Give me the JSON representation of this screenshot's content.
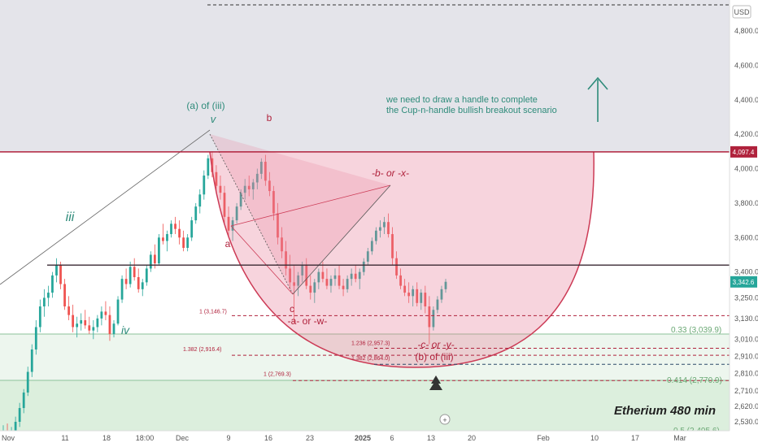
{
  "chart_data": {
    "type": "candlestick",
    "title": "Etherium 480 min",
    "currency": "USD",
    "y_axis_ticks": [
      "2,530.0",
      "2,620.0",
      "2,710.0",
      "2,810.0",
      "2,910.0",
      "3,010.0",
      "3,130.0",
      "3,250.0",
      "3,400.0",
      "3,600.0",
      "3,800.0",
      "4,000.0",
      "4,200.0",
      "4,400.0",
      "4,600.0",
      "4,800.0"
    ],
    "x_axis_ticks": [
      "Nov",
      "11",
      "18",
      "18:00",
      "Dec",
      "9",
      "16",
      "23",
      "2025",
      "6",
      "13",
      "20",
      "Feb",
      "10",
      "17",
      "Mar"
    ],
    "price_labels": {
      "resistance": "4,097.4",
      "last_price": "3,342.6"
    },
    "horizontal_levels": [
      {
        "name": "resistance",
        "value": 4097.4,
        "color": "#b0223c"
      },
      {
        "name": "neckline",
        "value": 3440,
        "color": "#3a2a33"
      },
      {
        "name": "top-dashed",
        "value": 5000,
        "color": "#333333"
      }
    ],
    "fib_levels": [
      {
        "label": "1 (3,146.7)",
        "value": 3146.7
      },
      {
        "label": "1.382 (2,916.4)",
        "value": 2916.4
      },
      {
        "label": "1 (2,769.3)",
        "value": 2769.3
      },
      {
        "label": "1.236 (2,957.3)",
        "value": 2957.3
      },
      {
        "label": "1.382 (2,864.0)",
        "value": 2864.0
      }
    ],
    "green_fibs": [
      {
        "label": "0.33 (3,039.9)",
        "value": 3039.9
      },
      {
        "label": "0.414 (2,770.9)",
        "value": 2770.9
      },
      {
        "label": "0.5 (2,495.6)",
        "value": 2495.6
      }
    ],
    "wave_labels": {
      "iii": "iii",
      "iv": "iv",
      "v_top": "(a) of (iii)",
      "v": "v",
      "a": "a",
      "b": "b",
      "c": "c",
      "c_alt": "-a- or -w-",
      "b_alt": "-b- or -x-",
      "c_bottom": "-c- or -y-",
      "b_of_iii": "(b) of (iii)"
    },
    "annotation": "we need to draw a handle to complete\nthe Cup-n-handle bullish breakout scenario",
    "candles": [
      [
        2450,
        2510,
        2380,
        2470
      ],
      [
        2470,
        2520,
        2400,
        2440
      ],
      [
        2440,
        2500,
        2410,
        2480
      ],
      [
        2480,
        2560,
        2450,
        2530
      ],
      [
        2530,
        2640,
        2500,
        2610
      ],
      [
        2610,
        2720,
        2580,
        2700
      ],
      [
        2700,
        2850,
        2680,
        2820
      ],
      [
        2820,
        2980,
        2790,
        2950
      ],
      [
        2950,
        3120,
        2920,
        3080
      ],
      [
        3080,
        3240,
        3050,
        3200
      ],
      [
        3200,
        3300,
        3140,
        3250
      ],
      [
        3250,
        3320,
        3200,
        3280
      ],
      [
        3280,
        3400,
        3250,
        3380
      ],
      [
        3380,
        3480,
        3340,
        3440
      ],
      [
        3440,
        3460,
        3300,
        3330
      ],
      [
        3330,
        3360,
        3180,
        3200
      ],
      [
        3200,
        3260,
        3120,
        3150
      ],
      [
        3150,
        3210,
        3050,
        3080
      ],
      [
        3080,
        3140,
        3020,
        3100
      ],
      [
        3100,
        3160,
        3060,
        3120
      ],
      [
        3120,
        3180,
        3070,
        3090
      ],
      [
        3090,
        3140,
        3040,
        3060
      ],
      [
        3060,
        3120,
        3010,
        3080
      ],
      [
        3080,
        3150,
        3050,
        3130
      ],
      [
        3130,
        3200,
        3090,
        3170
      ],
      [
        3170,
        3230,
        3120,
        3150
      ],
      [
        3150,
        3200,
        3000,
        3040
      ],
      [
        3040,
        3120,
        3020,
        3100
      ],
      [
        3100,
        3260,
        3090,
        3240
      ],
      [
        3240,
        3380,
        3220,
        3360
      ],
      [
        3360,
        3420,
        3300,
        3330
      ],
      [
        3330,
        3460,
        3310,
        3430
      ],
      [
        3430,
        3480,
        3350,
        3370
      ],
      [
        3370,
        3420,
        3280,
        3300
      ],
      [
        3300,
        3360,
        3260,
        3340
      ],
      [
        3340,
        3440,
        3320,
        3420
      ],
      [
        3420,
        3520,
        3400,
        3500
      ],
      [
        3500,
        3560,
        3420,
        3450
      ],
      [
        3450,
        3620,
        3440,
        3600
      ],
      [
        3600,
        3680,
        3560,
        3580
      ],
      [
        3580,
        3640,
        3520,
        3620
      ],
      [
        3620,
        3700,
        3600,
        3680
      ],
      [
        3680,
        3720,
        3620,
        3650
      ],
      [
        3650,
        3700,
        3560,
        3600
      ],
      [
        3600,
        3640,
        3520,
        3540
      ],
      [
        3540,
        3620,
        3520,
        3600
      ],
      [
        3600,
        3720,
        3580,
        3700
      ],
      [
        3700,
        3800,
        3680,
        3780
      ],
      [
        3780,
        3880,
        3740,
        3850
      ],
      [
        3850,
        3990,
        3820,
        3960
      ],
      [
        3960,
        4080,
        3940,
        4060
      ],
      [
        4060,
        4100,
        3950,
        3980
      ],
      [
        3980,
        4020,
        3860,
        3900
      ],
      [
        3900,
        3960,
        3820,
        3860
      ],
      [
        3860,
        3900,
        3680,
        3720
      ],
      [
        3720,
        3780,
        3600,
        3640
      ],
      [
        3640,
        3720,
        3580,
        3700
      ],
      [
        3700,
        3800,
        3680,
        3780
      ],
      [
        3780,
        3880,
        3760,
        3860
      ],
      [
        3860,
        3940,
        3820,
        3900
      ],
      [
        3900,
        3960,
        3840,
        3880
      ],
      [
        3880,
        3940,
        3820,
        3920
      ],
      [
        3920,
        4000,
        3880,
        3970
      ],
      [
        3970,
        4060,
        3940,
        4040
      ],
      [
        4040,
        4080,
        3900,
        3930
      ],
      [
        3930,
        3980,
        3840,
        3870
      ],
      [
        3870,
        3900,
        3700,
        3740
      ],
      [
        3740,
        3800,
        3560,
        3600
      ],
      [
        3600,
        3660,
        3480,
        3520
      ],
      [
        3520,
        3580,
        3380,
        3420
      ],
      [
        3420,
        3500,
        3300,
        3340
      ],
      [
        3340,
        3440,
        3100,
        3320
      ],
      [
        3320,
        3400,
        3260,
        3380
      ],
      [
        3380,
        3460,
        3340,
        3440
      ],
      [
        3440,
        3480,
        3300,
        3320
      ],
      [
        3320,
        3380,
        3240,
        3280
      ],
      [
        3280,
        3360,
        3220,
        3340
      ],
      [
        3340,
        3420,
        3300,
        3400
      ],
      [
        3400,
        3460,
        3340,
        3360
      ],
      [
        3360,
        3420,
        3300,
        3320
      ],
      [
        3320,
        3380,
        3280,
        3360
      ],
      [
        3360,
        3420,
        3320,
        3380
      ],
      [
        3380,
        3440,
        3300,
        3320
      ],
      [
        3320,
        3360,
        3260,
        3300
      ],
      [
        3300,
        3380,
        3280,
        3360
      ],
      [
        3360,
        3420,
        3320,
        3390
      ],
      [
        3390,
        3440,
        3340,
        3360
      ],
      [
        3360,
        3420,
        3300,
        3400
      ],
      [
        3400,
        3480,
        3380,
        3460
      ],
      [
        3460,
        3540,
        3440,
        3520
      ],
      [
        3520,
        3600,
        3500,
        3580
      ],
      [
        3580,
        3660,
        3560,
        3640
      ],
      [
        3640,
        3700,
        3600,
        3660
      ],
      [
        3660,
        3720,
        3620,
        3690
      ],
      [
        3690,
        3740,
        3600,
        3620
      ],
      [
        3620,
        3660,
        3440,
        3480
      ],
      [
        3480,
        3520,
        3360,
        3380
      ],
      [
        3380,
        3420,
        3300,
        3320
      ],
      [
        3320,
        3360,
        3260,
        3280
      ],
      [
        3280,
        3340,
        3220,
        3260
      ],
      [
        3260,
        3320,
        3200,
        3300
      ],
      [
        3300,
        3340,
        3200,
        3220
      ],
      [
        3220,
        3300,
        3180,
        3280
      ],
      [
        3280,
        3320,
        3160,
        3200
      ],
      [
        3200,
        3260,
        2980,
        3080
      ],
      [
        3080,
        3200,
        3060,
        3180
      ],
      [
        3180,
        3260,
        3160,
        3240
      ],
      [
        3240,
        3320,
        3220,
        3300
      ],
      [
        3300,
        3360,
        3280,
        3343
      ]
    ]
  }
}
